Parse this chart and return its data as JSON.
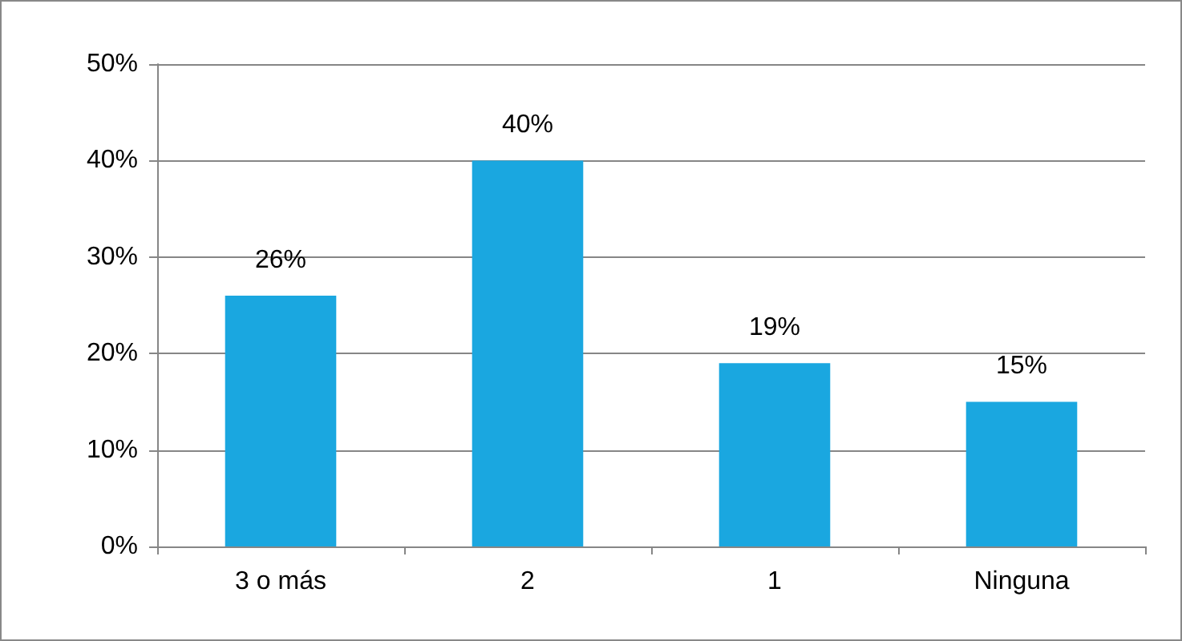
{
  "chart_data": {
    "type": "bar",
    "categories": [
      "3 o más",
      "2",
      "1",
      "Ninguna"
    ],
    "values": [
      26,
      40,
      19,
      15
    ],
    "value_labels": [
      "26%",
      "40%",
      "19%",
      "15%"
    ],
    "color": "#1aa7e0",
    "ylim": [
      0,
      50
    ],
    "yticks": [
      {
        "value": 0,
        "label": "0%"
      },
      {
        "value": 10,
        "label": "10%"
      },
      {
        "value": 20,
        "label": "20%"
      },
      {
        "value": 30,
        "label": "30%"
      },
      {
        "value": 40,
        "label": "40%"
      },
      {
        "value": 50,
        "label": "50%"
      }
    ],
    "grid": "y"
  }
}
